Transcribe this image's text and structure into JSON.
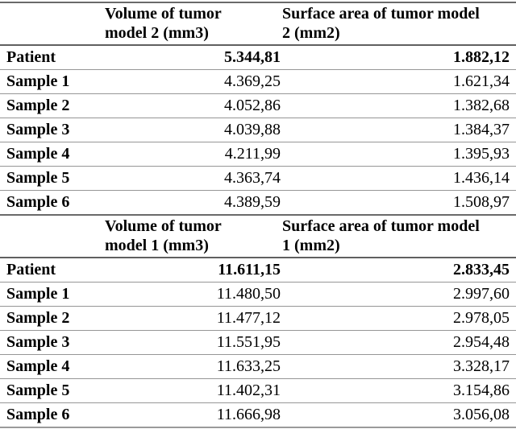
{
  "page": {
    "background_color": "#ffffff",
    "text_color": "#000000",
    "row_line_color": "#969696",
    "header_line_color": "#606060"
  },
  "tables": [
    {
      "header": {
        "volume": "Volume of tumor\nmodel 2 (mm3)",
        "surface": "Surface area of tumor model\n2 (mm2)"
      },
      "rows": [
        {
          "label": "Patient",
          "volume": "5.344,81",
          "surface": "1.882,12"
        },
        {
          "label": "Sample 1",
          "volume": "4.369,25",
          "surface": "1.621,34"
        },
        {
          "label": "Sample 2",
          "volume": "4.052,86",
          "surface": "1.382,68"
        },
        {
          "label": "Sample 3",
          "volume": "4.039,88",
          "surface": "1.384,37"
        },
        {
          "label": "Sample 4",
          "volume": "4.211,99",
          "surface": "1.395,93"
        },
        {
          "label": "Sample 5",
          "volume": "4.363,74",
          "surface": "1.436,14"
        },
        {
          "label": "Sample 6",
          "volume": "4.389,59",
          "surface": "1.508,97"
        }
      ]
    },
    {
      "header": {
        "volume": "Volume of tumor\nmodel 1 (mm3)",
        "surface": "Surface area of tumor model\n1 (mm2)"
      },
      "rows": [
        {
          "label": "Patient",
          "volume": "11.611,15",
          "surface": "2.833,45"
        },
        {
          "label": "Sample 1",
          "volume": "11.480,50",
          "surface": "2.997,60"
        },
        {
          "label": "Sample 2",
          "volume": "11.477,12",
          "surface": "2.978,05"
        },
        {
          "label": "Sample 3",
          "volume": "11.551,95",
          "surface": "2.954,48"
        },
        {
          "label": "Sample 4",
          "volume": "11.633,25",
          "surface": "3.328,17"
        },
        {
          "label": "Sample 5",
          "volume": "11.402,31",
          "surface": "3.154,86"
        },
        {
          "label": "Sample 6",
          "volume": "11.666,98",
          "surface": "3.056,08"
        }
      ]
    }
  ]
}
